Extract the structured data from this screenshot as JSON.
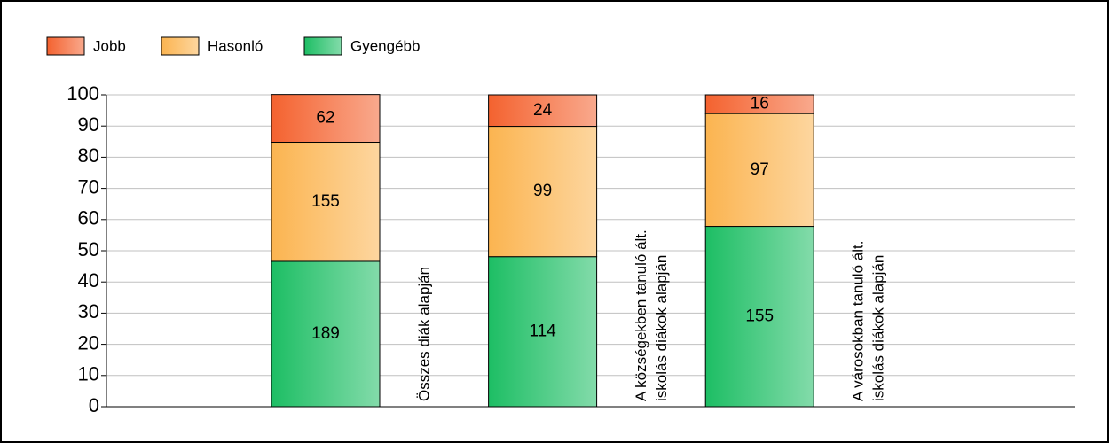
{
  "chart_data": {
    "type": "stacked_bar_percent",
    "categories": [
      [
        "Összes diák alapján"
      ],
      [
        "A községekben tanuló ált.",
        "iskolás diákok alapján"
      ],
      [
        "A városokban tanuló ált.",
        "iskolás diákok alapján"
      ]
    ],
    "series": [
      {
        "name": "Jobb",
        "color": "#f4622f",
        "values": [
          15.3,
          10.1,
          6.0
        ],
        "counts": [
          62,
          24,
          16
        ]
      },
      {
        "name": "Hasonló",
        "color": "#fbb450",
        "values": [
          38.2,
          41.8,
          36.2
        ],
        "counts": [
          155,
          99,
          97
        ]
      },
      {
        "name": "Gyengébb",
        "color": "#1dbe64",
        "values": [
          46.6,
          48.1,
          57.8
        ],
        "counts": [
          189,
          114,
          155
        ]
      }
    ],
    "ylim": [
      0,
      100
    ],
    "yticks": [
      0,
      10,
      20,
      30,
      40,
      50,
      60,
      70,
      80,
      90,
      100
    ],
    "grid": true,
    "legend": "top-left"
  }
}
